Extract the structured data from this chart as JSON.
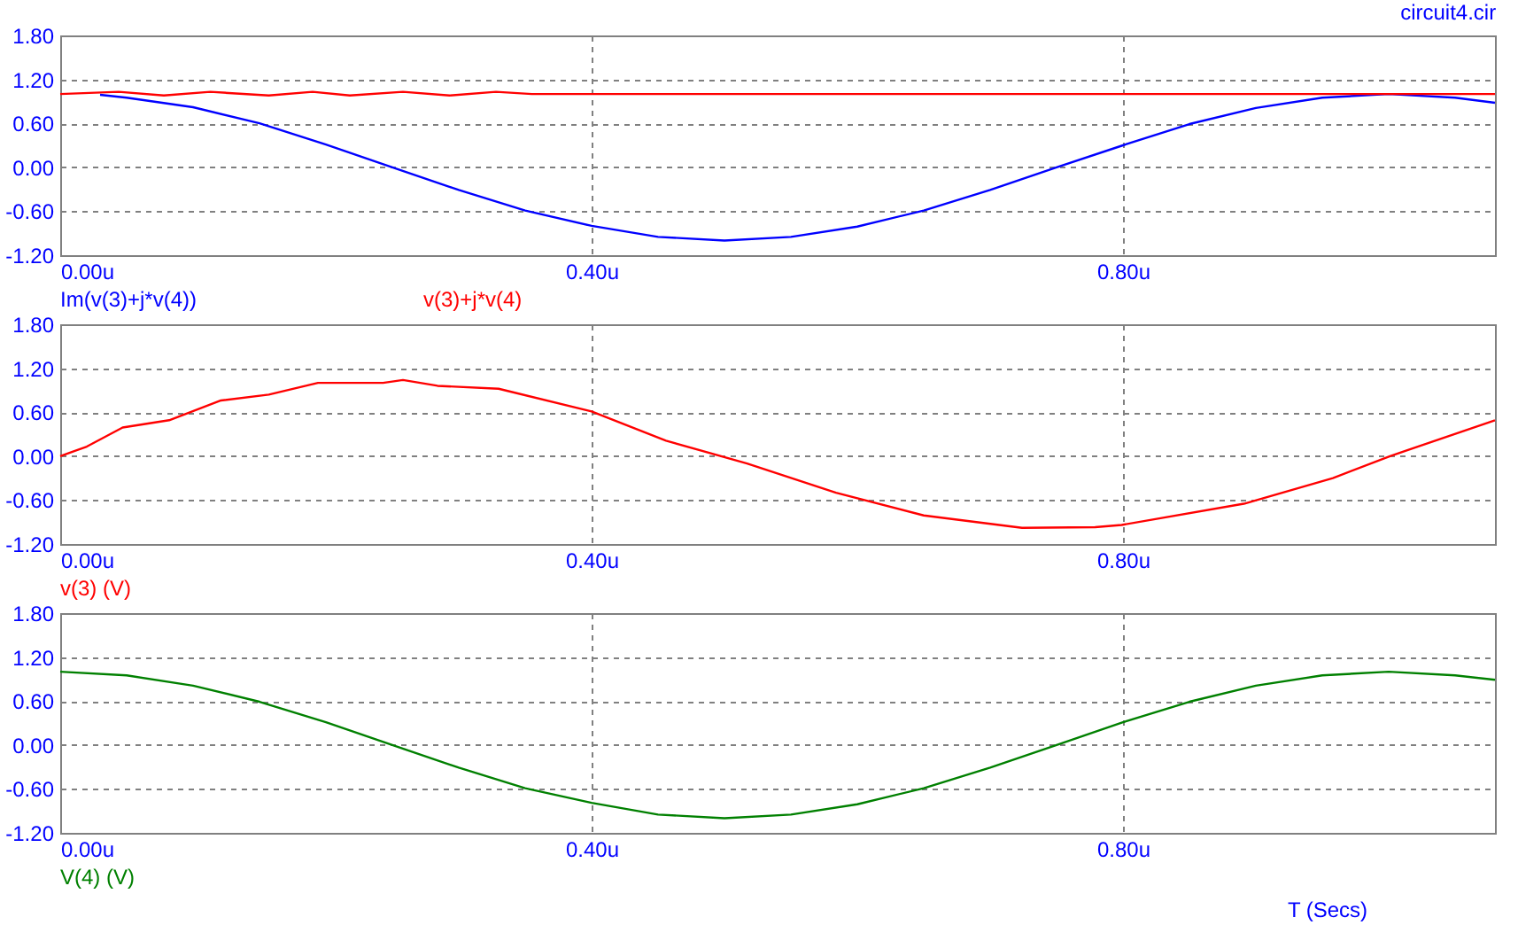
{
  "chart_data": [
    {
      "type": "line",
      "title": "circuit4.cir",
      "legend": "bottom left",
      "grid": true,
      "xlim": [
        0,
        1.08
      ],
      "ylim": [
        -1.2,
        1.8
      ],
      "xticks": [
        {
          "value": 0,
          "label": "0.00u"
        },
        {
          "value": 0.4,
          "label": "0.40u"
        },
        {
          "value": 0.8,
          "label": "0.80u"
        }
      ],
      "yticks": [
        {
          "value": 1.8,
          "label": "1.80"
        },
        {
          "value": 1.2,
          "label": "1.20"
        },
        {
          "value": 0.6,
          "label": "0.60"
        },
        {
          "value": 0,
          "label": "0.00"
        },
        {
          "value": -0.6,
          "label": "-0.60"
        },
        {
          "value": -1.2,
          "label": "-1.20"
        }
      ],
      "series": [
        {
          "name": "Im(v(3)+j*v(4))",
          "color": "#0000ff",
          "x": [
            0.03,
            0.05,
            0.1,
            0.15,
            0.2,
            0.25,
            0.3,
            0.35,
            0.4,
            0.45,
            0.5,
            0.55,
            0.6,
            0.65,
            0.7,
            0.75,
            0.8,
            0.85,
            0.9,
            0.95,
            1.0,
            1.05,
            1.08
          ],
          "values": [
            0.99,
            0.95,
            0.82,
            0.6,
            0.31,
            0.0,
            -0.31,
            -0.59,
            -0.8,
            -0.95,
            -1.0,
            -0.95,
            -0.81,
            -0.59,
            -0.31,
            0.0,
            0.3,
            0.59,
            0.81,
            0.95,
            1.0,
            0.95,
            0.88
          ]
        },
        {
          "name": "v(3)+j*v(4)",
          "color": "#ff0000",
          "x": [
            0,
            0.044,
            0.078,
            0.113,
            0.157,
            0.19,
            0.218,
            0.258,
            0.293,
            0.328,
            0.355,
            1.08
          ],
          "values": [
            1.0,
            1.03,
            0.98,
            1.03,
            0.98,
            1.03,
            0.98,
            1.03,
            0.98,
            1.03,
            1.0,
            1.0
          ]
        }
      ]
    },
    {
      "type": "line",
      "legend": "bottom left",
      "grid": true,
      "xlim": [
        0,
        1.08
      ],
      "ylim": [
        -1.2,
        1.8
      ],
      "xticks": [
        {
          "value": 0,
          "label": "0.00u"
        },
        {
          "value": 0.4,
          "label": "0.40u"
        },
        {
          "value": 0.8,
          "label": "0.80u"
        }
      ],
      "yticks": [
        {
          "value": 1.8,
          "label": "1.80"
        },
        {
          "value": 1.2,
          "label": "1.20"
        },
        {
          "value": 0.6,
          "label": "0.60"
        },
        {
          "value": 0,
          "label": "0.00"
        },
        {
          "value": -0.6,
          "label": "-0.60"
        },
        {
          "value": -1.2,
          "label": "-1.20"
        }
      ],
      "series": [
        {
          "name": "v(3) (V)",
          "color": "#ff0000",
          "x": [
            0,
            0.02,
            0.047,
            0.082,
            0.121,
            0.157,
            0.194,
            0.243,
            0.258,
            0.284,
            0.33,
            0.4,
            0.456,
            0.517,
            0.584,
            0.65,
            0.724,
            0.779,
            0.799,
            0.891,
            0.958,
            1.001,
            1.08
          ],
          "values": [
            0.0,
            0.13,
            0.39,
            0.49,
            0.76,
            0.84,
            1.0,
            1.0,
            1.04,
            0.96,
            0.92,
            0.61,
            0.21,
            -0.1,
            -0.5,
            -0.81,
            -0.98,
            -0.97,
            -0.94,
            -0.65,
            -0.3,
            0.0,
            0.49
          ]
        }
      ]
    },
    {
      "type": "line",
      "legend": "bottom left",
      "grid": true,
      "xlabel": "T (Secs)",
      "xlim": [
        0,
        1.08
      ],
      "ylim": [
        -1.2,
        1.8
      ],
      "xticks": [
        {
          "value": 0,
          "label": "0.00u"
        },
        {
          "value": 0.4,
          "label": "0.40u"
        },
        {
          "value": 0.8,
          "label": "0.80u"
        }
      ],
      "yticks": [
        {
          "value": 1.8,
          "label": "1.80"
        },
        {
          "value": 1.2,
          "label": "1.20"
        },
        {
          "value": 0.6,
          "label": "0.60"
        },
        {
          "value": 0,
          "label": "0.00"
        },
        {
          "value": -0.6,
          "label": "-0.60"
        },
        {
          "value": -1.2,
          "label": "-1.20"
        }
      ],
      "series": [
        {
          "name": "V(4) (V)",
          "color": "#008000",
          "x": [
            0,
            0.05,
            0.1,
            0.15,
            0.2,
            0.25,
            0.3,
            0.35,
            0.4,
            0.45,
            0.5,
            0.55,
            0.6,
            0.65,
            0.7,
            0.75,
            0.8,
            0.85,
            0.9,
            0.95,
            1.0,
            1.05,
            1.08
          ],
          "values": [
            1.0,
            0.95,
            0.81,
            0.59,
            0.31,
            0.0,
            -0.31,
            -0.59,
            -0.79,
            -0.95,
            -1.0,
            -0.95,
            -0.81,
            -0.59,
            -0.31,
            0.0,
            0.31,
            0.59,
            0.81,
            0.95,
            1.0,
            0.95,
            0.89
          ]
        }
      ]
    }
  ]
}
